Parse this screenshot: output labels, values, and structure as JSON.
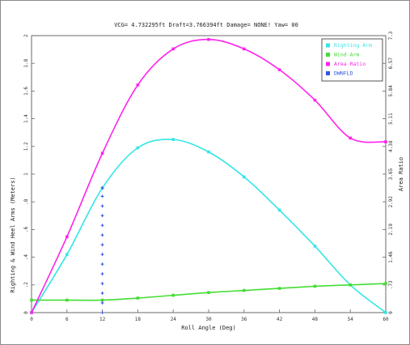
{
  "chart_data": {
    "type": "line",
    "title": "VCG= 4.732295ft Draft=3.766394ft Damage= NONE! Yaw= 00",
    "xlabel": "Roll Angle (Deg)",
    "ylabel_left": "Righting & Wind Heel Arms (Meters)",
    "ylabel_right": "Area Ratio",
    "xlim": [
      0,
      60
    ],
    "ylim_left": [
      0,
      2
    ],
    "ylim_right": [
      0,
      7.3
    ],
    "x_ticks": [
      "0",
      "6",
      "12",
      "18",
      "24",
      "30",
      "36",
      "42",
      "48",
      "54",
      "60"
    ],
    "y_left_ticks": [
      "0",
      ".2",
      ".4",
      ".6",
      ".8",
      "1",
      "1.2",
      "1.4",
      "1.6",
      "1.8",
      "2"
    ],
    "y_right_ticks": [
      "0",
      ".73",
      "1.46",
      "2.19",
      "2.92",
      "3.65",
      "4.38",
      "5.11",
      "5.84",
      "6.57",
      "7.3"
    ],
    "legend": {
      "placement": "top-right",
      "entries": [
        "Righting Arm",
        "Wind Arm",
        "Area Ratio",
        "DWNFLD"
      ]
    },
    "series": [
      {
        "name": "Righting Arm",
        "axis": "left",
        "color": "#33e6e6",
        "x": [
          0,
          6,
          12,
          18,
          24,
          30,
          36,
          42,
          48,
          54,
          60
        ],
        "y": [
          0.0,
          0.42,
          0.9,
          1.19,
          1.25,
          1.16,
          0.98,
          0.74,
          0.48,
          0.2,
          -0.08
        ]
      },
      {
        "name": "Wind Arm",
        "axis": "left",
        "color": "#44dd33",
        "x": [
          0,
          6,
          12,
          18,
          24,
          30,
          36,
          42,
          48,
          54,
          60
        ],
        "y": [
          0.09,
          0.09,
          0.09,
          0.105,
          0.125,
          0.145,
          0.16,
          0.175,
          0.19,
          0.2,
          0.21
        ]
      },
      {
        "name": "Area Ratio",
        "axis": "right",
        "color": "#ff22ee",
        "x": [
          0,
          6,
          12,
          18,
          24,
          30,
          36,
          42,
          48,
          54,
          60
        ],
        "y": [
          0.0,
          2.0,
          4.2,
          6.0,
          6.95,
          7.2,
          6.95,
          6.4,
          5.6,
          4.6,
          4.5
        ]
      },
      {
        "name": "DWNFLD",
        "axis": "left",
        "color": "#3355dd",
        "x": [
          12,
          12,
          12,
          12,
          12,
          12,
          12,
          12,
          12,
          12,
          12,
          12,
          12,
          12
        ],
        "y": [
          0.0,
          0.07,
          0.14,
          0.21,
          0.28,
          0.35,
          0.42,
          0.49,
          0.56,
          0.63,
          0.7,
          0.77,
          0.84,
          0.9
        ]
      }
    ]
  }
}
